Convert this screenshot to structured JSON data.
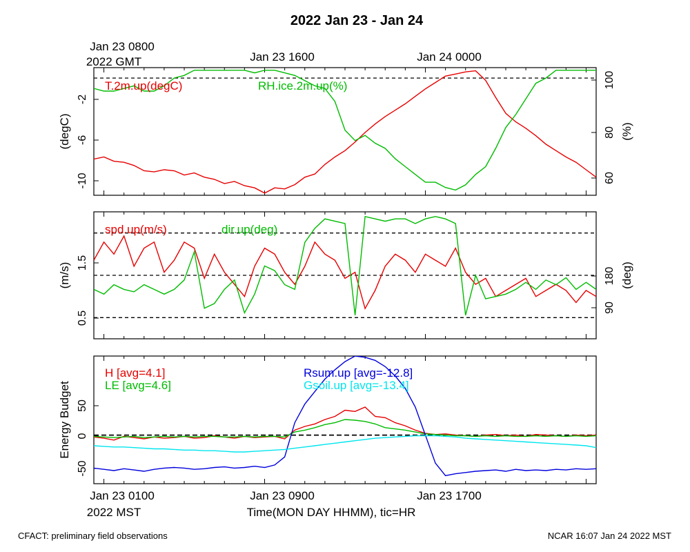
{
  "title": "2022 Jan 23 - Jan 24",
  "top_time_labels": {
    "first_line1": "Jan 23 0800",
    "first_line2": "2022 GMT",
    "second": "Jan 23 1600",
    "third": "Jan 24 0000"
  },
  "bottom_time_labels": {
    "first": "Jan 23 0100",
    "second": "Jan 23 0900",
    "third": "Jan 23 1700",
    "year_tz": "2022 MST",
    "axis_title": "Time(MON DAY HHMM), tic=HR"
  },
  "footer": {
    "left": "CFACT: preliminary field observations",
    "right": "NCAR 16:07 Jan 24 2022 MST"
  },
  "colors": {
    "red": "#e60000",
    "green": "#00bb00",
    "blue": "#0000dd",
    "cyan": "#00e5ee"
  },
  "chart_data": [
    {
      "type": "line",
      "name_panel": "temperature-rh",
      "x_unit": "hours after Jan 23 0000 MST",
      "xlim": [
        0.5,
        25.5
      ],
      "ylabel_left": "(degC)",
      "ylabel_right": "(%)",
      "ylim_left": [
        -11.2,
        0.8
      ],
      "yticks_left": [
        "-10",
        "-6",
        "-2"
      ],
      "ylim_right": [
        55,
        104
      ],
      "yticks_right": [
        "60",
        "80",
        "100"
      ],
      "reference_lines_right": [
        100
      ],
      "series": [
        {
          "name": "T.2m.up(degC)",
          "axis": "left",
          "color": "red",
          "x": [
            0.5,
            1,
            1.5,
            2,
            2.5,
            3,
            3.5,
            4,
            4.5,
            5,
            5.5,
            6,
            6.5,
            7,
            7.5,
            8,
            8.5,
            9,
            9.5,
            10,
            10.5,
            11,
            11.5,
            12,
            12.5,
            13,
            13.5,
            14,
            14.5,
            15,
            15.5,
            16,
            16.5,
            17,
            17.5,
            18,
            18.5,
            19,
            19.5,
            20,
            20.5,
            21,
            21.5,
            22,
            22.5,
            23,
            23.5,
            24,
            24.5,
            25,
            25.5
          ],
          "values": [
            -7.8,
            -7.6,
            -8.0,
            -8.1,
            -8.4,
            -8.9,
            -9.0,
            -8.8,
            -8.9,
            -9.3,
            -9.1,
            -9.5,
            -9.7,
            -10.1,
            -9.9,
            -10.3,
            -10.5,
            -11.0,
            -10.5,
            -10.6,
            -10.2,
            -9.5,
            -9.2,
            -8.3,
            -7.6,
            -7.0,
            -6.2,
            -5.3,
            -4.5,
            -3.8,
            -3.2,
            -2.6,
            -1.9,
            -1.2,
            -0.6,
            0.0,
            0.2,
            0.4,
            0.5,
            -0.4,
            -2.0,
            -3.5,
            -4.3,
            -4.9,
            -5.6,
            -6.4,
            -7.0,
            -7.6,
            -8.1,
            -8.8,
            -9.5
          ]
        },
        {
          "name": "RH.ice.2m.up(%)",
          "axis": "right",
          "color": "green",
          "x": [
            0.5,
            1,
            1.5,
            2,
            2.5,
            3,
            3.5,
            4,
            4.5,
            5,
            5.5,
            6,
            6.5,
            7,
            7.5,
            8,
            8.5,
            9,
            9.5,
            10,
            10.5,
            11,
            11.5,
            12,
            12.5,
            13,
            13.5,
            14,
            14.5,
            15,
            15.5,
            16,
            16.5,
            17,
            17.5,
            18,
            18.5,
            19,
            19.5,
            20,
            20.5,
            21,
            21.5,
            22,
            22.5,
            23,
            23.5,
            24,
            24.5,
            25,
            25.5
          ],
          "values": [
            96,
            95,
            95,
            96,
            97,
            95,
            95,
            97,
            100,
            101,
            103,
            103,
            103,
            103,
            103,
            103,
            102,
            103,
            103,
            102,
            101,
            99,
            97,
            96,
            91,
            80,
            76,
            78,
            75,
            73,
            69,
            66,
            63,
            60,
            60,
            58,
            57,
            59,
            63,
            66,
            73,
            81,
            86,
            92,
            98,
            100,
            103,
            103,
            103,
            103,
            103
          ]
        }
      ]
    },
    {
      "type": "line",
      "name_panel": "wind",
      "x_unit": "hours after Jan 23 0000 MST",
      "xlim": [
        0.5,
        25.5
      ],
      "ylabel_left": "(m/s)",
      "ylabel_right": "(deg)",
      "ylim_left": [
        0.2,
        2.3
      ],
      "yticks_left": [
        "0.5",
        "1.5"
      ],
      "ylim_right": [
        45,
        315
      ],
      "yticks_right": [
        "90",
        "180"
      ],
      "reference_lines_right": [
        90,
        180,
        270
      ],
      "series": [
        {
          "name": "spd.up(m/s)",
          "axis": "left",
          "color": "red",
          "x": [
            0.5,
            1,
            1.5,
            2,
            2.5,
            3,
            3.5,
            4,
            4.5,
            5,
            5.5,
            6,
            6.5,
            7,
            7.5,
            8,
            8.5,
            9,
            9.5,
            10,
            10.5,
            11,
            11.5,
            12,
            12.5,
            13,
            13.5,
            14,
            14.5,
            15,
            15.5,
            16,
            16.5,
            17,
            17.5,
            18,
            18.5,
            19,
            19.5,
            20,
            20.5,
            21,
            21.5,
            22,
            22.5,
            23,
            23.5,
            24,
            24.5,
            25,
            25.5
          ],
          "values": [
            1.5,
            1.8,
            1.6,
            1.9,
            1.4,
            1.7,
            1.8,
            1.3,
            1.5,
            1.8,
            1.7,
            1.2,
            1.6,
            1.3,
            1.1,
            0.9,
            1.4,
            1.7,
            1.6,
            1.3,
            1.1,
            1.4,
            1.8,
            1.6,
            1.5,
            1.2,
            1.3,
            0.7,
            1.0,
            1.4,
            1.6,
            1.5,
            1.3,
            1.6,
            1.5,
            1.4,
            1.7,
            1.3,
            1.1,
            1.2,
            0.9,
            1.0,
            1.1,
            1.2,
            0.9,
            1.0,
            1.1,
            1.0,
            0.8,
            1.0,
            0.9
          ]
        },
        {
          "name": "dir.up(deg)",
          "axis": "right",
          "color": "green",
          "x": [
            0.5,
            1,
            1.5,
            2,
            2.5,
            3,
            3.5,
            4,
            4.5,
            5,
            5.5,
            6,
            6.5,
            7,
            7.5,
            8,
            8.5,
            9,
            9.5,
            10,
            10.5,
            11,
            11.5,
            12,
            12.5,
            13,
            13.5,
            14,
            14.5,
            15,
            15.5,
            16,
            16.5,
            17,
            17.5,
            18,
            18.5,
            19,
            19.5,
            20,
            20.5,
            21,
            21.5,
            22,
            22.5,
            23,
            23.5,
            24,
            24.5,
            25,
            25.5
          ],
          "values": [
            150,
            140,
            160,
            150,
            145,
            160,
            150,
            140,
            150,
            170,
            230,
            110,
            120,
            150,
            170,
            100,
            140,
            200,
            190,
            160,
            150,
            250,
            280,
            300,
            295,
            290,
            95,
            305,
            300,
            295,
            300,
            300,
            290,
            300,
            305,
            300,
            290,
            95,
            180,
            130,
            135,
            140,
            150,
            165,
            150,
            170,
            160,
            175,
            150,
            165,
            150
          ]
        }
      ]
    },
    {
      "type": "line",
      "name_panel": "energy-budget",
      "x_unit": "hours after Jan 23 0000 MST",
      "xlim": [
        0.5,
        25.5
      ],
      "ylabel_left": "Energy Budget",
      "ylim_left": [
        -78,
        127
      ],
      "yticks_left": [
        "-50",
        "0",
        "50"
      ],
      "reference_lines_left": [
        0
      ],
      "series": [
        {
          "name": "H [avg=4.1]",
          "color": "red",
          "x": [
            0.5,
            1,
            1.5,
            2,
            2.5,
            3,
            3.5,
            4,
            4.5,
            5,
            5.5,
            6,
            6.5,
            7,
            7.5,
            8,
            8.5,
            9,
            9.5,
            10,
            10.5,
            11,
            11.5,
            12,
            12.5,
            13,
            13.5,
            14,
            14.5,
            15,
            15.5,
            16,
            16.5,
            17,
            17.5,
            18,
            18.5,
            19,
            19.5,
            20,
            20.5,
            21,
            21.5,
            22,
            22.5,
            23,
            23.5,
            24,
            24.5,
            25,
            25.5
          ],
          "values": [
            -3,
            -5,
            -8,
            -2,
            -4,
            -6,
            -3,
            -5,
            -4,
            -2,
            -5,
            -4,
            -1,
            -3,
            -5,
            -2,
            -4,
            -3,
            -2,
            -6,
            8,
            14,
            18,
            25,
            30,
            40,
            38,
            45,
            30,
            28,
            20,
            15,
            8,
            3,
            1,
            2,
            0,
            -1,
            -2,
            0,
            1,
            -1,
            0,
            -2,
            1,
            0,
            -1,
            -2,
            0,
            -1,
            0
          ]
        },
        {
          "name": "LE [avg=4.6]",
          "color": "green",
          "x": [
            0.5,
            1,
            1.5,
            2,
            2.5,
            3,
            3.5,
            4,
            4.5,
            5,
            5.5,
            6,
            6.5,
            7,
            7.5,
            8,
            8.5,
            9,
            9.5,
            10,
            10.5,
            11,
            11.5,
            12,
            12.5,
            13,
            13.5,
            14,
            14.5,
            15,
            15.5,
            16,
            16.5,
            17,
            17.5,
            18,
            18.5,
            19,
            19.5,
            20,
            20.5,
            21,
            21.5,
            22,
            22.5,
            23,
            23.5,
            24,
            24.5,
            25,
            25.5
          ],
          "values": [
            -2,
            -3,
            -4,
            -3,
            -2,
            -4,
            -3,
            -2,
            -3,
            -2,
            -3,
            -2,
            -2,
            -3,
            -3,
            -2,
            -3,
            -2,
            -2,
            -3,
            5,
            8,
            12,
            17,
            20,
            25,
            24,
            22,
            18,
            12,
            10,
            8,
            5,
            2,
            1,
            0,
            -1,
            -1,
            -2,
            -1,
            -2,
            -1,
            -2,
            -2,
            -1,
            -2,
            -1,
            -2,
            -1,
            -2,
            -1
          ]
        },
        {
          "name": "Rsum.up [avg=-12.8]",
          "color": "blue",
          "x": [
            0.5,
            1,
            1.5,
            2,
            2.5,
            3,
            3.5,
            4,
            4.5,
            5,
            5.5,
            6,
            6.5,
            7,
            7.5,
            8,
            8.5,
            9,
            9.5,
            10,
            10.5,
            11,
            11.5,
            12,
            12.5,
            13,
            13.5,
            14,
            14.5,
            15,
            15.5,
            16,
            16.5,
            17,
            17.5,
            18,
            18.5,
            19,
            19.5,
            20,
            20.5,
            21,
            21.5,
            22,
            22.5,
            23,
            23.5,
            24,
            24.5,
            25,
            25.5
          ],
          "values": [
            -53,
            -55,
            -57,
            -54,
            -56,
            -58,
            -55,
            -53,
            -52,
            -53,
            -55,
            -54,
            -52,
            -51,
            -53,
            -52,
            -50,
            -52,
            -48,
            -35,
            20,
            50,
            70,
            90,
            105,
            118,
            127,
            125,
            120,
            110,
            95,
            75,
            45,
            0,
            -45,
            -65,
            -62,
            -60,
            -58,
            -57,
            -56,
            -58,
            -55,
            -57,
            -56,
            -57,
            -55,
            -56,
            -54,
            -55,
            -54
          ]
        },
        {
          "name": "Gsoil.up [avg=-13.4]",
          "color": "cyan",
          "x": [
            0.5,
            1,
            1.5,
            2,
            2.5,
            3,
            3.5,
            4,
            4.5,
            5,
            5.5,
            6,
            6.5,
            7,
            7.5,
            8,
            8.5,
            9,
            9.5,
            10,
            10.5,
            11,
            11.5,
            12,
            12.5,
            13,
            13.5,
            14,
            14.5,
            15,
            15.5,
            16,
            16.5,
            17,
            17.5,
            18,
            18.5,
            19,
            19.5,
            20,
            20.5,
            21,
            21.5,
            22,
            22.5,
            23,
            23.5,
            24,
            24.5,
            25,
            25.5
          ],
          "values": [
            -17,
            -18,
            -19,
            -19,
            -20,
            -21,
            -22,
            -22,
            -23,
            -24,
            -24,
            -25,
            -25,
            -26,
            -27,
            -27,
            -26,
            -25,
            -24,
            -23,
            -21,
            -19,
            -17,
            -15,
            -13,
            -11,
            -9,
            -7,
            -5,
            -4,
            -3,
            -2,
            -1,
            -1,
            -1,
            -2,
            -3,
            -5,
            -6,
            -7,
            -8,
            -9,
            -10,
            -11,
            -12,
            -13,
            -14,
            -15,
            -16,
            -17,
            -20
          ]
        }
      ]
    }
  ]
}
